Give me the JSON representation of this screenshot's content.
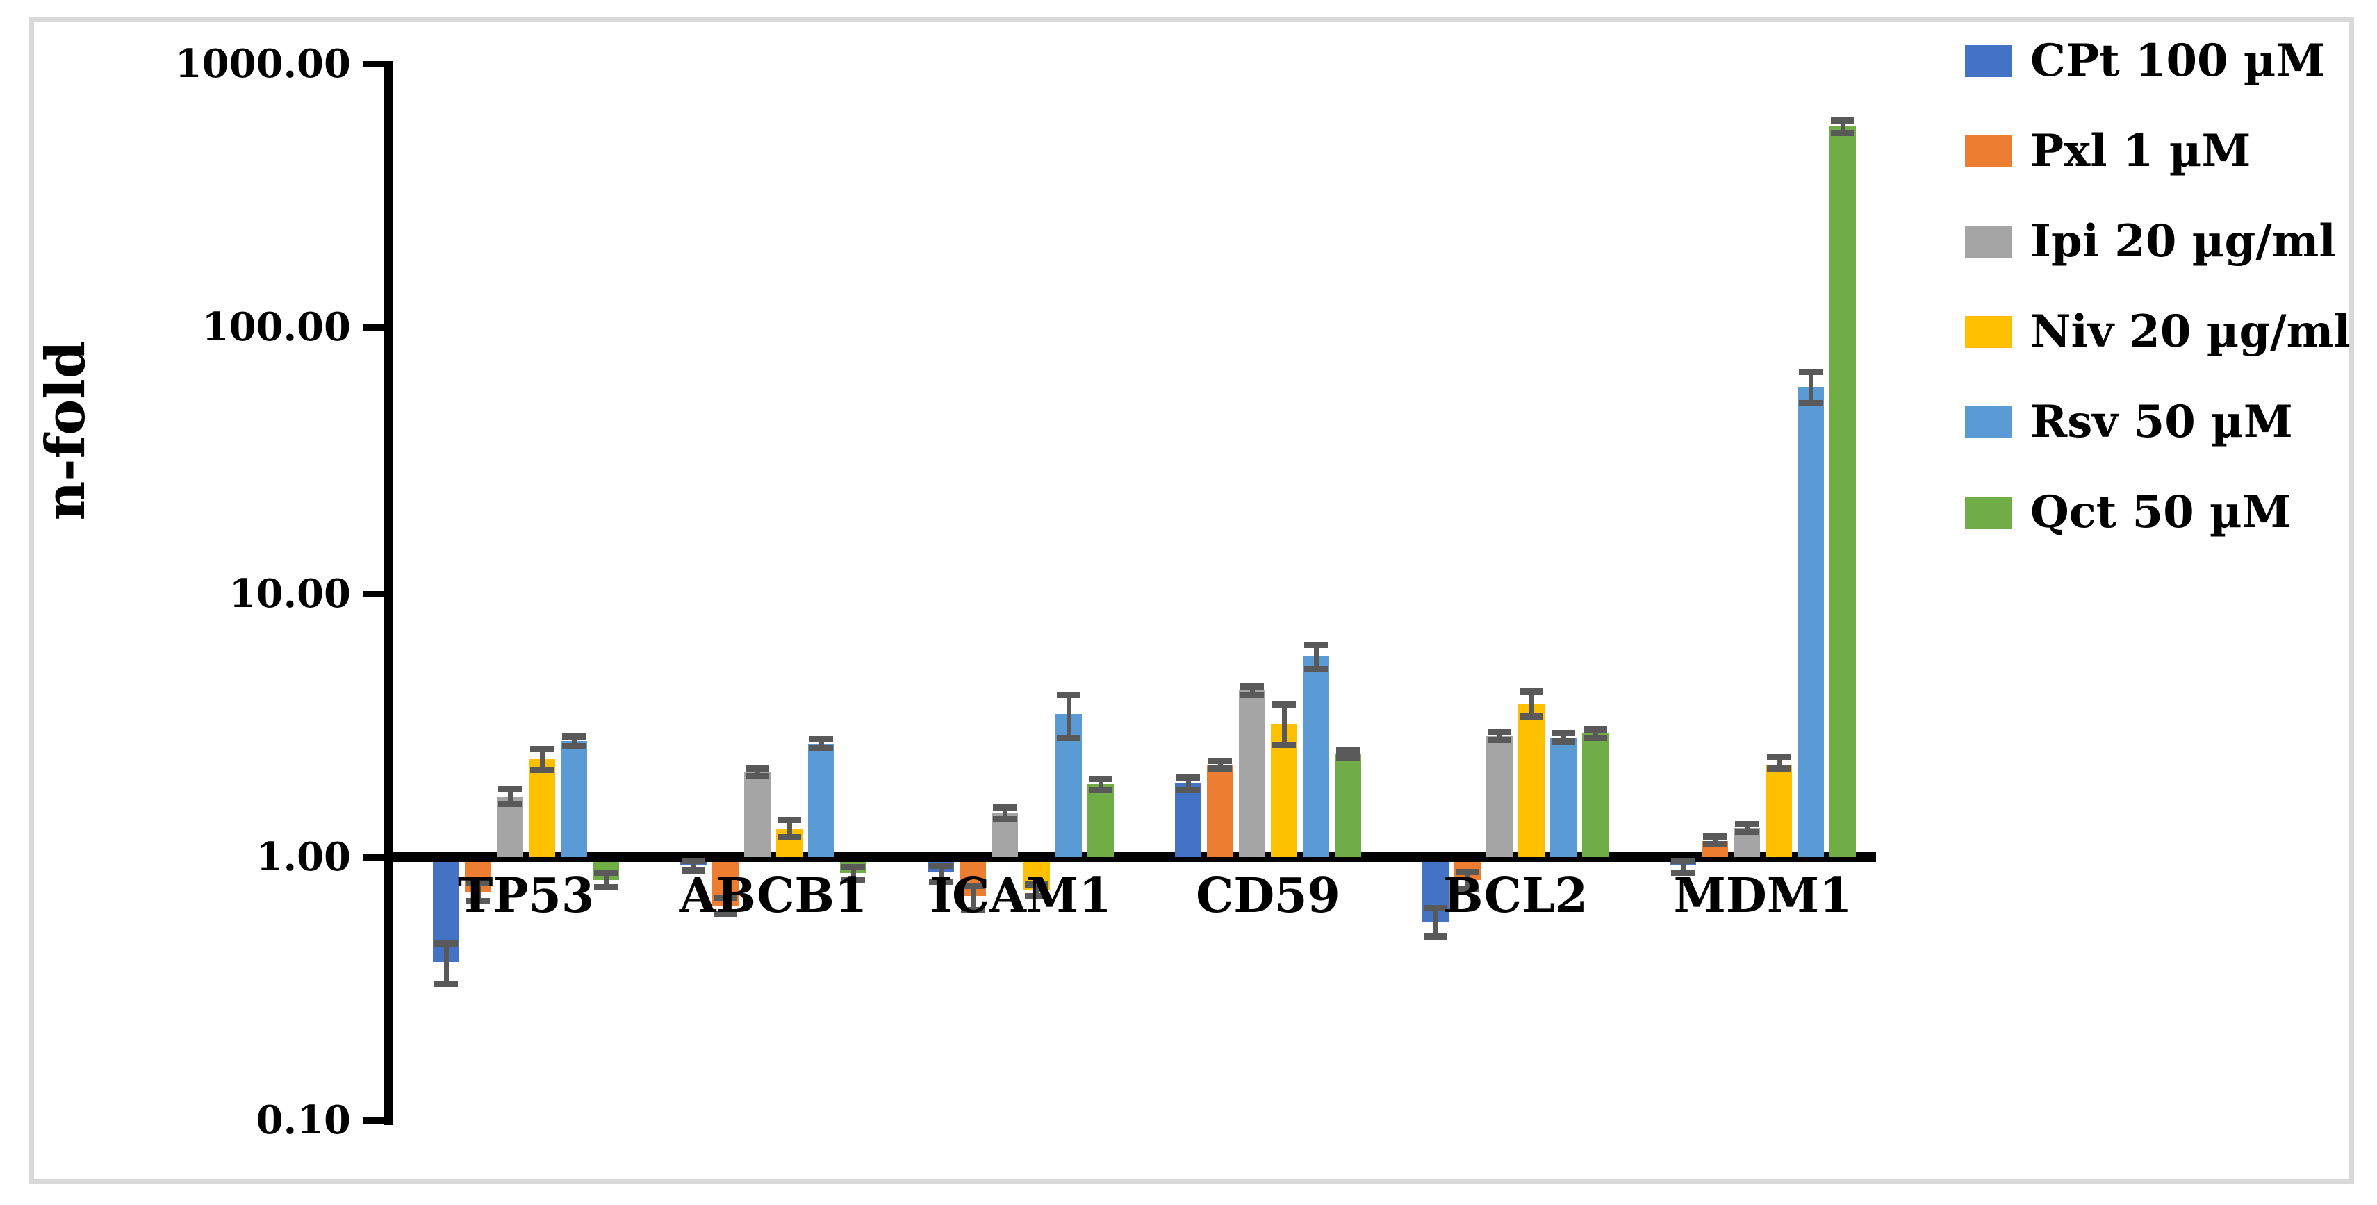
{
  "figure": {
    "border_color": "#d9d9d9",
    "background": "#ffffff",
    "error_bar_color": "#595959"
  },
  "chart_data": {
    "type": "bar",
    "scale": "log10",
    "title": "",
    "xlabel": "",
    "ylabel": "n-fold",
    "ylim": [
      0.1,
      1000.0
    ],
    "baseline": 1.0,
    "grid": false,
    "legend_position": "right",
    "yticks": [
      "1000.00",
      "100.00",
      "10.00",
      "1.00",
      "0.10"
    ],
    "ytick_values": [
      1000,
      100,
      10,
      1,
      0.1
    ],
    "categories": [
      "TP53",
      "ABCB1",
      "ICAM1",
      "CD59",
      "BCL2",
      "MDM1"
    ],
    "series": [
      {
        "name": "CPt 100 µM",
        "color": "#4472C4",
        "values": [
          0.4,
          0.93,
          0.88,
          1.9,
          0.57,
          0.93
        ],
        "errors_low": [
          0.33,
          0.89,
          0.81,
          1.8,
          0.5,
          0.87
        ],
        "errors_high": [
          0.47,
          0.97,
          0.93,
          2.01,
          0.64,
          0.97
        ]
      },
      {
        "name": "Pxl 1 µM",
        "color": "#ED7D31",
        "values": [
          0.74,
          0.65,
          0.71,
          2.25,
          0.82,
          1.15
        ],
        "errors_low": [
          0.68,
          0.61,
          0.63,
          2.18,
          0.76,
          1.12
        ],
        "errors_high": [
          0.8,
          0.7,
          0.78,
          2.32,
          0.88,
          1.2
        ]
      },
      {
        "name": "Ipi 20 µg/ml",
        "color": "#A5A5A5",
        "values": [
          1.7,
          2.1,
          1.47,
          4.3,
          2.9,
          1.29
        ],
        "errors_low": [
          1.6,
          2.03,
          1.4,
          4.15,
          2.8,
          1.25
        ],
        "errors_high": [
          1.81,
          2.17,
          1.55,
          4.45,
          3.0,
          1.34
        ]
      },
      {
        "name": "Niv 20 µg/ml",
        "color": "#FFC000",
        "values": [
          2.36,
          1.28,
          0.75,
          3.2,
          3.8,
          2.25
        ],
        "errors_low": [
          2.15,
          1.19,
          0.71,
          2.67,
          3.43,
          2.18
        ],
        "errors_high": [
          2.58,
          1.39,
          0.79,
          3.8,
          4.28,
          2.41
        ]
      },
      {
        "name": "Rsv 50 µM",
        "color": "#5B9BD5",
        "values": [
          2.75,
          2.7,
          3.5,
          5.8,
          2.85,
          61.0
        ],
        "errors_low": [
          2.64,
          2.6,
          2.85,
          5.2,
          2.75,
          53.0
        ],
        "errors_high": [
          2.87,
          2.81,
          4.15,
          6.42,
          2.96,
          70.0
        ]
      },
      {
        "name": "Qct 50 µM",
        "color": "#70AD47",
        "values": [
          0.82,
          0.87,
          1.89,
          2.47,
          2.95,
          595.0
        ],
        "errors_low": [
          0.77,
          0.82,
          1.8,
          2.4,
          2.85,
          565.0
        ],
        "errors_high": [
          0.87,
          0.92,
          1.99,
          2.55,
          3.05,
          632.0
        ]
      }
    ]
  }
}
